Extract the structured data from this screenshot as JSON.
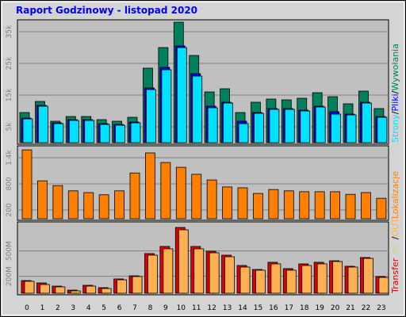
{
  "title": "Raport Godzinowy -  listopad 2020",
  "legend_separator": "/",
  "chart_data": [
    {
      "type": "bar",
      "series": [
        {
          "name": "Wywołania",
          "color": "#00805c",
          "values": [
            9500,
            13000,
            6750,
            8250,
            8250,
            7250,
            6750,
            8000,
            23500,
            30000,
            38000,
            27500,
            16000,
            17000,
            9500,
            12750,
            13750,
            13500,
            14000,
            15750,
            14500,
            12250,
            16250,
            10750
          ]
        },
        {
          "name": "Pliki",
          "color": "#0000ff",
          "values": [
            7750,
            11750,
            6250,
            7250,
            7250,
            6000,
            5750,
            6500,
            17250,
            23750,
            30500,
            21750,
            11500,
            12750,
            6750,
            9500,
            10750,
            10750,
            10250,
            11500,
            9750,
            9000,
            12750,
            8250
          ]
        },
        {
          "name": "Strony",
          "color": "#00e0ff",
          "values": [
            7500,
            11500,
            6000,
            7000,
            7000,
            5750,
            5500,
            6250,
            16750,
            23000,
            30000,
            21000,
            11000,
            12500,
            6000,
            9250,
            10500,
            10500,
            10000,
            11250,
            9000,
            8750,
            12500,
            8000
          ]
        }
      ],
      "ylim": [
        0,
        38500
      ],
      "yticks": [
        {
          "value": 5000,
          "label": "5k"
        },
        {
          "value": 15000,
          "label": "15k"
        },
        {
          "value": 25000,
          "label": "25k"
        },
        {
          "value": 35000,
          "label": "35k"
        }
      ],
      "grid": true
    },
    {
      "type": "bar",
      "series": [
        {
          "name": "Lokalizacje",
          "color": "#ff8000",
          "values": [
            1580,
            870,
            760,
            640,
            600,
            550,
            640,
            1050,
            1510,
            1290,
            1180,
            1020,
            890,
            730,
            710,
            580,
            670,
            640,
            620,
            620,
            620,
            560,
            600,
            470
          ]
        }
      ],
      "ylim": [
        0,
        1655
      ],
      "yticks": [
        200,
        800,
        {
          "value": 1400,
          "label": "1.4k"
        }
      ],
      "grid": true
    },
    {
      "type": "bar",
      "categories": [
        "0",
        "1",
        "2",
        "3",
        "4",
        "5",
        "6",
        "7",
        "8",
        "9",
        "10",
        "11",
        "12",
        "13",
        "14",
        "15",
        "16",
        "17",
        "18",
        "19",
        "20",
        "21",
        "22",
        "23"
      ],
      "series": [
        {
          "name": "Transfer",
          "color": "#e00000",
          "values": [
            150,
            122,
            84,
            37,
            94,
            66,
            169,
            206,
            469,
            553,
            778,
            553,
            497,
            450,
            328,
            281,
            366,
            291,
            347,
            366,
            384,
            319,
            422,
            197
          ]
        },
        {
          "name": "OUT",
          "color": "#ffb050",
          "values": [
            141,
            103,
            75,
            28,
            84,
            56,
            159,
            197,
            450,
            525,
            750,
            525,
            478,
            431,
            309,
            272,
            347,
            272,
            328,
            347,
            375,
            309,
            412,
            187
          ]
        }
      ],
      "legend_extra": [
        {
          "name": "IN",
          "color": "#c8d890"
        }
      ],
      "ylim": [
        0,
        834
      ],
      "yticks": [
        {
          "value": 200,
          "label": "200M"
        },
        {
          "value": 500,
          "label": "500M"
        }
      ],
      "grid": true
    }
  ]
}
